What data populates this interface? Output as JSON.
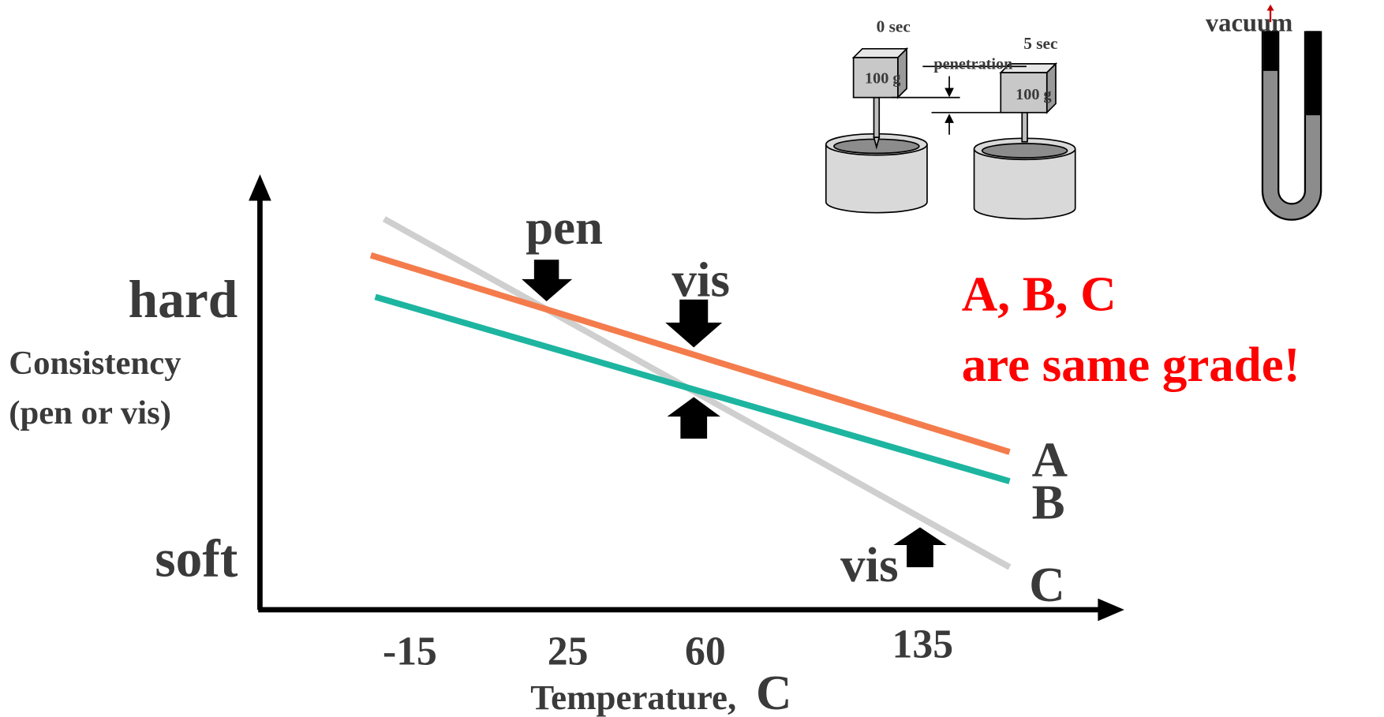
{
  "y_axis": {
    "title": [
      "Consistency",
      "(pen or vis)"
    ],
    "levels": [
      "hard",
      "soft"
    ]
  },
  "x_axis": {
    "title": "Temperature,",
    "unit": "C",
    "ticks": [
      "-15",
      "25",
      "60",
      "135"
    ]
  },
  "lines": [
    {
      "label": "A",
      "color": "#f47c4c"
    },
    {
      "label": "B",
      "color": "#1db5a0"
    },
    {
      "label": "C",
      "color": "#cfcfcf"
    }
  ],
  "annotations": [
    "pen",
    "vis",
    "vis"
  ],
  "note": [
    "A, B, C",
    "are same grade!"
  ],
  "penetration_test": {
    "times": [
      "0 sec",
      "5 sec"
    ],
    "weights": [
      "100 g",
      "100 g"
    ],
    "label": "penetration"
  },
  "viscometer": {
    "label": "vacuum"
  }
}
